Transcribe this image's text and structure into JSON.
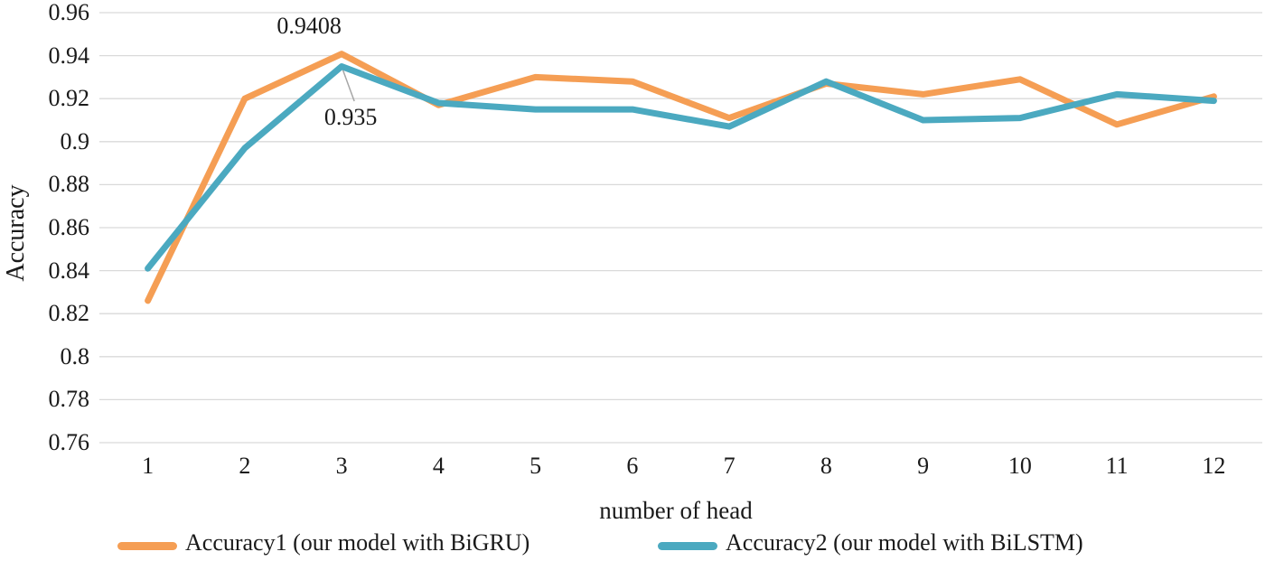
{
  "chart_data": {
    "type": "line",
    "title": "",
    "xlabel": "number of head",
    "ylabel": "Accuracy",
    "x": [
      "1",
      "2",
      "3",
      "4",
      "5",
      "6",
      "7",
      "8",
      "9",
      "10",
      "11",
      "12"
    ],
    "series": [
      {
        "name": "Accuracy1 (our model with BiGRU)",
        "color": "#F59E54",
        "values": [
          0.826,
          0.92,
          0.9408,
          0.917,
          0.93,
          0.928,
          0.911,
          0.927,
          0.922,
          0.929,
          0.908,
          0.921
        ]
      },
      {
        "name": "Accuracy2 (our model with BiLSTM)",
        "color": "#4BA9C0",
        "values": [
          0.841,
          0.897,
          0.935,
          0.918,
          0.915,
          0.915,
          0.907,
          0.928,
          0.91,
          0.911,
          0.922,
          0.919
        ]
      }
    ],
    "ylim": [
      0.76,
      0.96
    ],
    "ytick_step": 0.02,
    "ytick_labels": [
      "0.96",
      "0.94",
      "0.92",
      "0.9",
      "0.88",
      "0.86",
      "0.84",
      "0.82",
      "0.8",
      "0.78",
      "0.76"
    ],
    "grid": true,
    "legend_position": "bottom",
    "annotations": [
      {
        "text": "0.9408",
        "series": 0,
        "x": "3",
        "value": 0.9408
      },
      {
        "text": "0.935",
        "series": 1,
        "x": "3",
        "value": 0.935
      }
    ]
  },
  "colors": {
    "gridline": "#D9D9D9",
    "leader_line": "#A6A6A6",
    "text": "#1a1a1a",
    "background": "#ffffff"
  }
}
